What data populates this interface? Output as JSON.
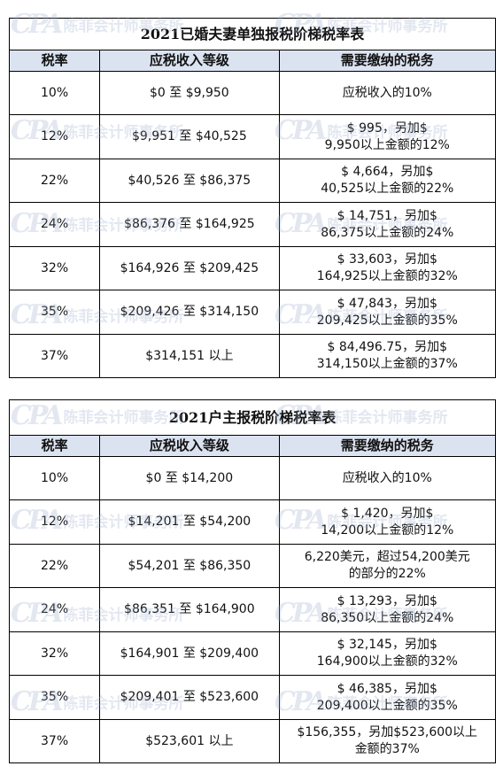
{
  "watermark": {
    "logo": "CPA",
    "text": "陈菲会计师事务所"
  },
  "table1": {
    "title": "2021已婚夫妻单独报税阶梯税率表",
    "headers": [
      "税率",
      "应税收入等级",
      "需要缴纳的税务"
    ],
    "rows": [
      {
        "rate": "10%",
        "bracket": "$0 至 $9,950",
        "tax1": "应税收入的10%",
        "tax2": ""
      },
      {
        "rate": "12%",
        "bracket": "$9,951 至 $40,525",
        "tax1": "$ 995，另加$",
        "tax2": "9,950以上金额的12%"
      },
      {
        "rate": "22%",
        "bracket": "$40,526 至 $86,375",
        "tax1": "$ 4,664，另加$",
        "tax2": "40,525以上金额的22%"
      },
      {
        "rate": "24%",
        "bracket": "$86,376 至 $164,925",
        "tax1": "$ 14,751，另加$",
        "tax2": "86,375以上金额的24%"
      },
      {
        "rate": "32%",
        "bracket": "$164,926 至 $209,425",
        "tax1": "$ 33,603，另加$",
        "tax2": "164,925以上金额的32%"
      },
      {
        "rate": "35%",
        "bracket": "$209,426 至 $314,150",
        "tax1": "$ 47,843，另加$",
        "tax2": "209,425以上金额的35%"
      },
      {
        "rate": "37%",
        "bracket": "$314,151 以上",
        "tax1": "$ 84,496.75，另加$",
        "tax2": "314,150以上金额的37%"
      }
    ]
  },
  "table2": {
    "title": "2021户主报税阶梯税率表",
    "headers": [
      "税率",
      "应税收入等级",
      "需要缴纳的税务"
    ],
    "rows": [
      {
        "rate": "10%",
        "bracket": "$0 至 $14,200",
        "tax1": "应税收入的10%",
        "tax2": ""
      },
      {
        "rate": "12%",
        "bracket": "$14,201 至 $54,200",
        "tax1": "$ 1,420，另加$",
        "tax2": "14,200以上金额的12%"
      },
      {
        "rate": "22%",
        "bracket": "$54,201 至 $86,350",
        "tax1": "6,220美元，超过54,200美元",
        "tax2": "的部分的22%"
      },
      {
        "rate": "24%",
        "bracket": "$86,351 至 $164,900",
        "tax1": "$ 13,293，另加$",
        "tax2": "86,350以上金额的24%"
      },
      {
        "rate": "32%",
        "bracket": "$164,901 至 $209,400",
        "tax1": "$ 32,145，另加$",
        "tax2": "164,900以上金额的32%"
      },
      {
        "rate": "35%",
        "bracket": "$209,401 至 $523,600",
        "tax1": "$ 46,385，另加$",
        "tax2": "209,400以上金额的35%"
      },
      {
        "rate": "37%",
        "bracket": "$523,601 以上",
        "tax1": "$156,355，另加$523,600以上",
        "tax2": "金额的37%"
      }
    ]
  }
}
